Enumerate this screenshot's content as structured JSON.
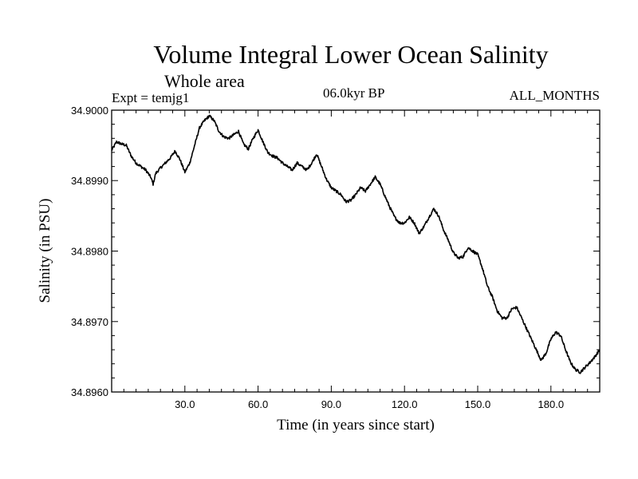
{
  "header": {
    "title": "Volume Integral Lower Ocean Salinity",
    "subtitle": "Whole area",
    "experiment": "Expt = temjg1",
    "period": "06.0kyr BP",
    "months": "ALL_MONTHS"
  },
  "colors": {
    "line": "#000000",
    "background": "#ffffff",
    "frame": "#000000"
  },
  "chart_data": {
    "type": "line",
    "title": "Volume Integral Lower Ocean Salinity",
    "subtitle": "Whole area",
    "xlabel": "Time (in years since start)",
    "ylabel": "Salinity (in PSU)",
    "xlim": [
      0,
      200
    ],
    "ylim": [
      34.896,
      34.9
    ],
    "xticks": [
      30,
      60,
      90,
      120,
      150,
      180
    ],
    "xtick_labels": [
      "30.0",
      "60.0",
      "90.0",
      "120.0",
      "150.0",
      "180.0"
    ],
    "yticks": [
      34.896,
      34.897,
      34.898,
      34.899,
      34.9
    ],
    "ytick_labels": [
      "34.8960",
      "34.8970",
      "34.8980",
      "34.8990",
      "34.9000"
    ],
    "grid": false,
    "series": [
      {
        "name": "Salinity",
        "x": [
          0,
          2,
          4,
          6,
          8,
          10,
          12,
          14,
          16,
          17,
          18,
          20,
          22,
          24,
          26,
          28,
          30,
          32,
          34,
          36,
          38,
          40,
          42,
          44,
          46,
          48,
          50,
          52,
          54,
          56,
          58,
          60,
          62,
          64,
          66,
          68,
          70,
          72,
          74,
          76,
          78,
          80,
          82,
          84,
          86,
          88,
          90,
          92,
          94,
          96,
          98,
          100,
          102,
          104,
          106,
          108,
          110,
          112,
          114,
          116,
          118,
          120,
          122,
          124,
          126,
          128,
          130,
          132,
          134,
          136,
          138,
          140,
          142,
          144,
          146,
          148,
          150,
          152,
          154,
          156,
          158,
          160,
          162,
          164,
          166,
          168,
          170,
          172,
          174,
          176,
          178,
          180,
          182,
          184,
          186,
          188,
          190,
          192,
          194,
          196,
          198,
          200
        ],
        "values": [
          34.89943,
          34.89955,
          34.89952,
          34.8995,
          34.89935,
          34.89925,
          34.8992,
          34.89915,
          34.89905,
          34.89895,
          34.8991,
          34.89918,
          34.89925,
          34.89932,
          34.89942,
          34.8993,
          34.89912,
          34.89925,
          34.8995,
          34.89975,
          34.89985,
          34.89992,
          34.89985,
          34.8997,
          34.89962,
          34.8996,
          34.89965,
          34.8997,
          34.89952,
          34.89945,
          34.8996,
          34.89972,
          34.89955,
          34.8994,
          34.89935,
          34.89932,
          34.89925,
          34.8992,
          34.89915,
          34.89925,
          34.8992,
          34.89915,
          34.89925,
          34.89938,
          34.8992,
          34.89902,
          34.8989,
          34.89885,
          34.8988,
          34.8987,
          34.89872,
          34.8988,
          34.8989,
          34.89885,
          34.89895,
          34.89905,
          34.89895,
          34.89878,
          34.89862,
          34.89848,
          34.8984,
          34.8984,
          34.89848,
          34.8984,
          34.89825,
          34.89835,
          34.89848,
          34.8986,
          34.8985,
          34.8983,
          34.89815,
          34.89798,
          34.8979,
          34.89792,
          34.89805,
          34.898,
          34.89795,
          34.89775,
          34.8975,
          34.89735,
          34.89715,
          34.89705,
          34.89705,
          34.89718,
          34.8972,
          34.89705,
          34.8969,
          34.89675,
          34.8966,
          34.89645,
          34.89655,
          34.89675,
          34.89685,
          34.8968,
          34.8966,
          34.89642,
          34.89632,
          34.89628,
          34.89635,
          34.89642,
          34.8965,
          34.8966
        ]
      }
    ]
  }
}
